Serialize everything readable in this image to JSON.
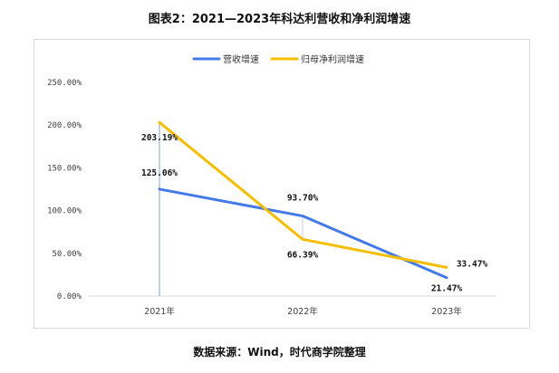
{
  "title": "图表2：2021—2023年科达利营收和净利润增速",
  "source": "数据来源：Wind，时代商学院整理",
  "colors": {
    "revenue": "#4479E8",
    "profit": "#F5BF00",
    "axis": "#d9d9d9",
    "frame": "#d9d9d9"
  },
  "chart_data": {
    "type": "line",
    "categories": [
      "2021年",
      "2022年",
      "2023年"
    ],
    "series": [
      {
        "name": "营收增速",
        "color": "#4479E8",
        "values": [
          125.06,
          93.7,
          21.47
        ],
        "labels": [
          "125.06%",
          "93.70%",
          "21.47%"
        ]
      },
      {
        "name": "归母净利润增速",
        "color": "#F5BF00",
        "values": [
          203.19,
          66.39,
          33.47
        ],
        "labels": [
          "203.19%",
          "66.39%",
          "33.47%"
        ]
      }
    ],
    "y_ticks": [
      0,
      50,
      100,
      150,
      200,
      250
    ],
    "y_tick_labels": [
      "0.00%",
      "50.00%",
      "100.00%",
      "150.00%",
      "200.00%",
      "250.00%"
    ],
    "ylim": [
      0,
      250
    ],
    "legend_position": "top-center",
    "grid": false
  }
}
